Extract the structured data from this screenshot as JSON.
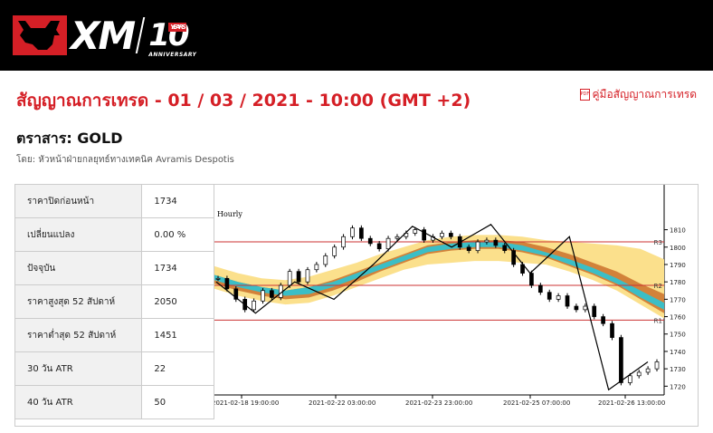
{
  "header": {
    "brand": "XM",
    "anniversary_number": "10",
    "anniversary_years": "YEARS",
    "anniversary_label": "ANNIVERSARY"
  },
  "page": {
    "title": "สัญญาณการเทรด - 01 / 03 / 2021 - 10:00 (GMT +2)",
    "guide_link": "คู่มือสัญญาณการเทรด",
    "instrument": "ตราสาร: GOLD",
    "byline": "โดย: หัวหน้าฝ่ายกลยุทธ์ทางเทคนิค Avramis Despotis"
  },
  "stats": [
    {
      "label": "ราคาปิดก่อนหน้า",
      "value": "1734"
    },
    {
      "label": "เปลี่ยนแปลง",
      "value": "0.00 %"
    },
    {
      "label": "ปัจจุบัน",
      "value": "1734"
    },
    {
      "label": "ราคาสูงสุด 52 สัปดาห์",
      "value": "2050"
    },
    {
      "label": "ราคาต่ำสุด 52 สัปดาห์",
      "value": "1451"
    },
    {
      "label": "30 วัน ATR",
      "value": "22"
    },
    {
      "label": "40 วัน ATR",
      "value": "50"
    }
  ],
  "chart_data": {
    "type": "line",
    "title": "Hourly",
    "y_ticks": [
      1720,
      1730,
      1740,
      1750,
      1760,
      1770,
      1780,
      1790,
      1800,
      1810
    ],
    "ylim": [
      1716,
      1815
    ],
    "x_tick_labels": [
      "2021-02-18 19:00:00",
      "2021-02-22 03:00:00",
      "2021-02-23 23:00:00",
      "2021-02-25 07:00:00",
      "2021-02-26 13:00:00"
    ],
    "levels": [
      {
        "name": "R3",
        "value": 1803
      },
      {
        "name": "R2",
        "value": 1778
      },
      {
        "name": "R1",
        "value": 1758
      }
    ],
    "price_path": [
      1782,
      1776,
      1770,
      1764,
      1769,
      1775,
      1771,
      1778,
      1786,
      1780,
      1787,
      1790,
      1795,
      1800,
      1806,
      1811,
      1805,
      1802,
      1799,
      1805,
      1806,
      1808,
      1810,
      1804,
      1806,
      1808,
      1806,
      1800,
      1798,
      1803,
      1804,
      1801,
      1798,
      1790,
      1785,
      1778,
      1774,
      1770,
      1772,
      1766,
      1764,
      1766,
      1760,
      1756,
      1748,
      1722,
      1726,
      1728,
      1730,
      1734
    ],
    "zigzag": [
      1780,
      1762,
      1780,
      1770,
      1790,
      1812,
      1800,
      1813,
      1785,
      1806,
      1718,
      1734
    ],
    "band_outer_upper": [
      1786,
      1782,
      1779,
      1778,
      1780,
      1784,
      1788,
      1793,
      1797,
      1800,
      1802,
      1803,
      1803,
      1802,
      1801,
      1800,
      1799,
      1798,
      1796,
      1790
    ],
    "band_outer_lower": [
      1781,
      1777,
      1774,
      1772,
      1773,
      1776,
      1780,
      1785,
      1790,
      1793,
      1794,
      1795,
      1795,
      1794,
      1793,
      1791,
      1788,
      1784,
      1779,
      1772
    ],
    "band_mid_upper": [
      1784,
      1780,
      1777,
      1775,
      1777,
      1781,
      1786,
      1791,
      1796,
      1801,
      1803,
      1804,
      1804,
      1803,
      1800,
      1796,
      1791,
      1786,
      1779,
      1773
    ],
    "band_mid_lower": [
      1779,
      1775,
      1772,
      1770,
      1771,
      1775,
      1780,
      1786,
      1791,
      1796,
      1798,
      1799,
      1799,
      1797,
      1794,
      1789,
      1784,
      1778,
      1770,
      1762
    ],
    "band_inner_upper": [
      1784,
      1780,
      1777,
      1775,
      1777,
      1780,
      1785,
      1790,
      1795,
      1800,
      1802,
      1803,
      1803,
      1801,
      1797,
      1793,
      1788,
      1782,
      1775,
      1768
    ],
    "band_inner_lower": [
      1781,
      1777,
      1774,
      1772,
      1773,
      1777,
      1782,
      1787,
      1792,
      1797,
      1799,
      1800,
      1800,
      1798,
      1795,
      1790,
      1785,
      1779,
      1771,
      1764
    ],
    "colors": {
      "outer": "#fbe08c",
      "mid": "#d2823a",
      "inner": "#3bbec6",
      "levels": "#cc3333",
      "candle": "#000000"
    }
  }
}
